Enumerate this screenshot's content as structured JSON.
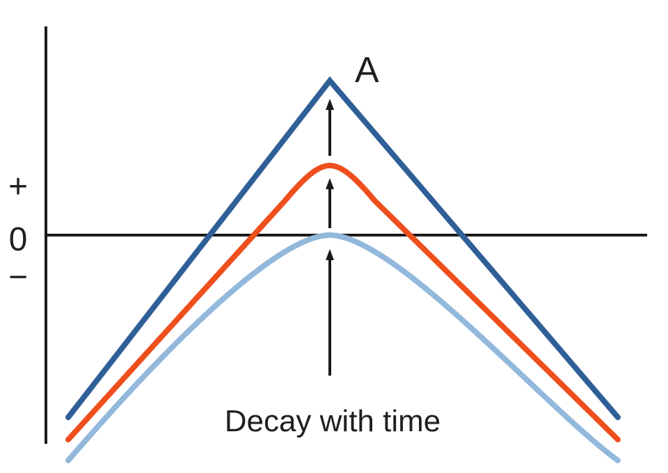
{
  "labels": {
    "peak": "A",
    "plus": "+",
    "zero": "0",
    "minus": "−",
    "decay": "Decay with time"
  },
  "colors": {
    "axis": "#1a1a1a",
    "curve_dark_blue": "#2f5f97",
    "curve_orange": "#ef4f1d",
    "curve_light_blue": "#92b9dc",
    "text": "#231f20"
  },
  "curves": [
    {
      "id": "sharp-peak",
      "color_key": "curve_dark_blue",
      "shape": "triangle"
    },
    {
      "id": "decayed-peak",
      "color_key": "curve_orange",
      "shape": "rounded"
    },
    {
      "id": "fully-decayed-peak",
      "color_key": "curve_light_blue",
      "shape": "rounded"
    }
  ]
}
